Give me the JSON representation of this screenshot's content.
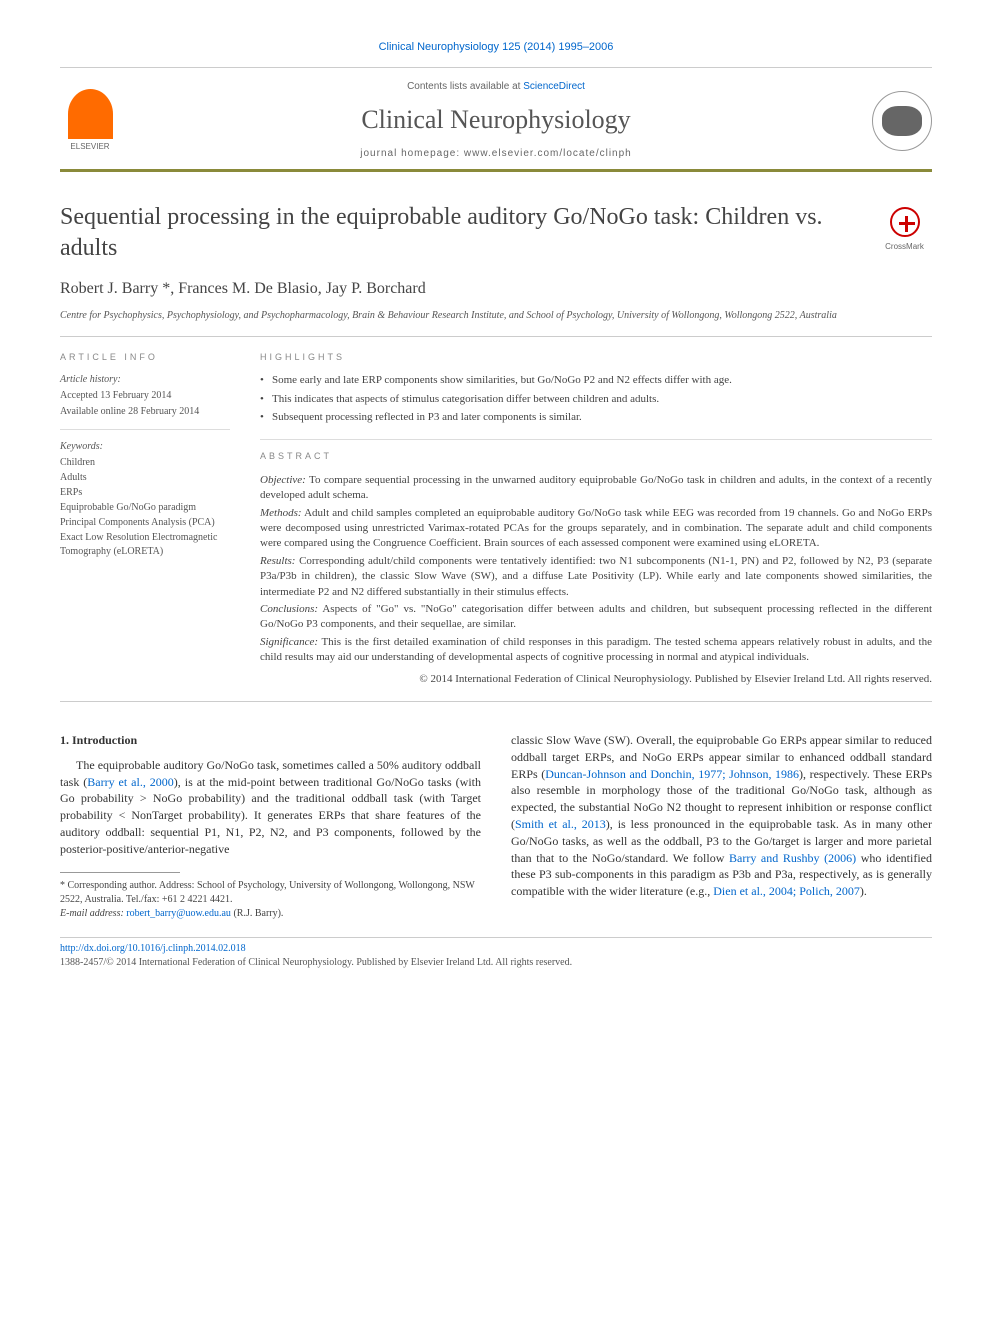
{
  "header": {
    "citation": "Clinical Neurophysiology 125 (2014) 1995–2006",
    "contents_prefix": "Contents lists available at ",
    "contents_link": "ScienceDirect",
    "journal_title": "Clinical Neurophysiology",
    "homepage_prefix": "journal homepage: ",
    "homepage_url": "www.elsevier.com/locate/clinph",
    "elsevier_label": "ELSEVIER"
  },
  "crossmark_label": "CrossMark",
  "title": "Sequential processing in the equiprobable auditory Go/NoGo task: Children vs. adults",
  "authors": "Robert J. Barry *, Frances M. De Blasio, Jay P. Borchard",
  "affiliation": "Centre for Psychophysics, Psychophysiology, and Psychopharmacology, Brain & Behaviour Research Institute, and School of Psychology, University of Wollongong, Wollongong 2522, Australia",
  "article_info": {
    "heading": "ARTICLE INFO",
    "history_label": "Article history:",
    "accepted": "Accepted 13 February 2014",
    "online": "Available online 28 February 2014",
    "keywords_label": "Keywords:",
    "keywords": [
      "Children",
      "Adults",
      "ERPs",
      "Equiprobable Go/NoGo paradigm",
      "Principal Components Analysis (PCA)",
      "Exact Low Resolution Electromagnetic Tomography (eLORETA)"
    ]
  },
  "highlights": {
    "heading": "HIGHLIGHTS",
    "items": [
      "Some early and late ERP components show similarities, but Go/NoGo P2 and N2 effects differ with age.",
      "This indicates that aspects of stimulus categorisation differ between children and adults.",
      "Subsequent processing reflected in P3 and later components is similar."
    ]
  },
  "abstract": {
    "heading": "ABSTRACT",
    "objective_label": "Objective:",
    "objective": " To compare sequential processing in the unwarned auditory equiprobable Go/NoGo task in children and adults, in the context of a recently developed adult schema.",
    "methods_label": "Methods:",
    "methods": " Adult and child samples completed an equiprobable auditory Go/NoGo task while EEG was recorded from 19 channels. Go and NoGo ERPs were decomposed using unrestricted Varimax-rotated PCAs for the groups separately, and in combination. The separate adult and child components were compared using the Congruence Coefficient. Brain sources of each assessed component were examined using eLORETA.",
    "results_label": "Results:",
    "results": " Corresponding adult/child components were tentatively identified: two N1 subcomponents (N1-1, PN) and P2, followed by N2, P3 (separate P3a/P3b in children), the classic Slow Wave (SW), and a diffuse Late Positivity (LP). While early and late components showed similarities, the intermediate P2 and N2 differed substantially in their stimulus effects.",
    "conclusions_label": "Conclusions:",
    "conclusions": " Aspects of \"Go\" vs. \"NoGo\" categorisation differ between adults and children, but subsequent processing reflected in the different Go/NoGo P3 components, and their sequellae, are similar.",
    "significance_label": "Significance:",
    "significance": " This is the first detailed examination of child responses in this paradigm. The tested schema appears relatively robust in adults, and the child results may aid our understanding of developmental aspects of cognitive processing in normal and atypical individuals.",
    "copyright": "© 2014 International Federation of Clinical Neurophysiology. Published by Elsevier Ireland Ltd. All rights reserved."
  },
  "body": {
    "intro_heading": "1. Introduction",
    "col1_p1_a": "The equiprobable auditory Go/NoGo task, sometimes called a 50% auditory oddball task (",
    "col1_p1_link1": "Barry et al., 2000",
    "col1_p1_b": "), is at the mid-point between traditional Go/NoGo tasks (with Go probability > NoGo probability) and the traditional oddball task (with Target probability < NonTarget probability). It generates ERPs that share features of the auditory oddball: sequential P1, N1, P2, N2, and P3 components, followed by the posterior-positive/anterior-negative",
    "col2_p1_a": "classic Slow Wave (SW). Overall, the equiprobable Go ERPs appear similar to reduced oddball target ERPs, and NoGo ERPs appear similar to enhanced oddball standard ERPs (",
    "col2_p1_link1": "Duncan-Johnson and Donchin, 1977; Johnson, 1986",
    "col2_p1_b": "), respectively. These ERPs also resemble in morphology those of the traditional Go/NoGo task, although as expected, the substantial NoGo N2 thought to represent inhibition or response conflict (",
    "col2_p1_link2": "Smith et al., 2013",
    "col2_p1_c": "), is less pronounced in the equiprobable task. As in many other Go/NoGo tasks, as well as the oddball, P3 to the Go/target is larger and more parietal than that to the NoGo/standard. We follow ",
    "col2_p1_link3": "Barry and Rushby (2006)",
    "col2_p1_d": " who identified these P3 sub-components in this paradigm as P3b and P3a, respectively, as is generally compatible with the wider literature (e.g., ",
    "col2_p1_link4": "Dien et al., 2004; Polich, 2007",
    "col2_p1_e": ")."
  },
  "footnote": {
    "corr_label": "* Corresponding author.",
    "corr_text": " Address: School of Psychology, University of Wollongong, Wollongong, NSW 2522, Australia. Tel./fax: +61 2 4221 4421.",
    "email_label": "E-mail address:",
    "email": " robert_barry@uow.edu.au",
    "email_suffix": " (R.J. Barry)."
  },
  "footer": {
    "doi": "http://dx.doi.org/10.1016/j.clinph.2014.02.018",
    "issn": "1388-2457/© 2014 International Federation of Clinical Neurophysiology. Published by Elsevier Ireland Ltd. All rights reserved."
  },
  "colors": {
    "link": "#0066cc",
    "header_border": "#8a8a3a",
    "elsevier_orange": "#ff6b00",
    "crossmark_red": "#c00"
  }
}
